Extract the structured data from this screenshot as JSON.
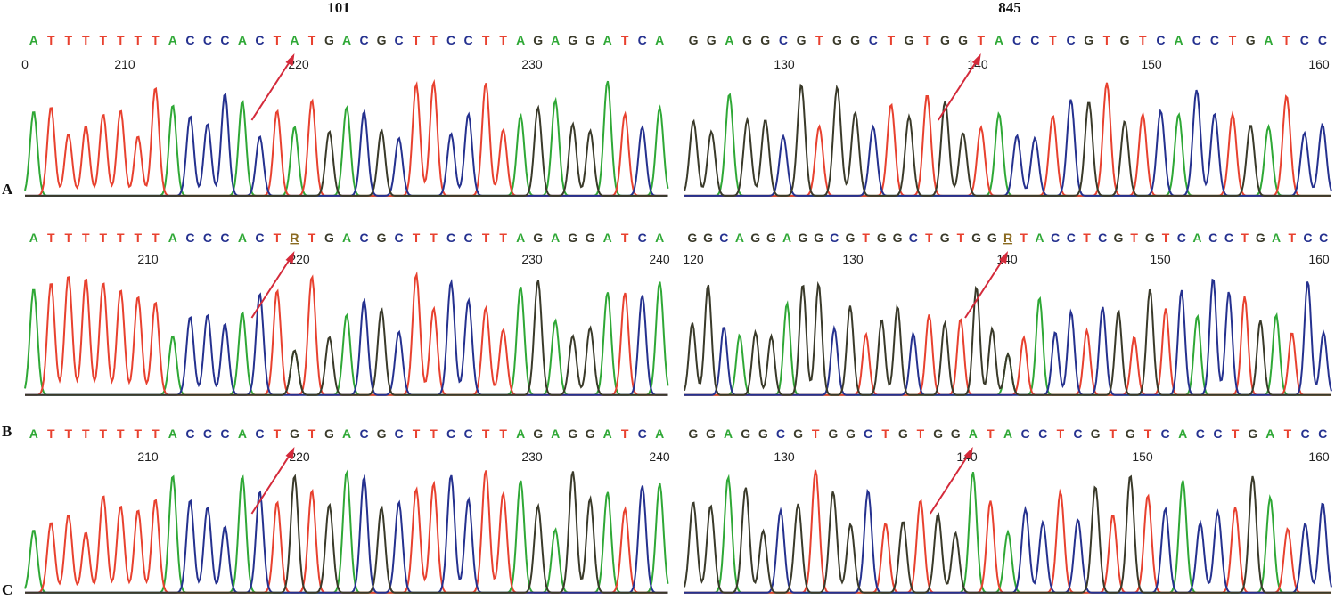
{
  "columns": [
    {
      "title": "101"
    },
    {
      "title": "845"
    }
  ],
  "rows": [
    {
      "label": "A",
      "panels": [
        {
          "sequence": "ATTTTTTTACCCACTATGACGCTTCCTTAGAGGATCA",
          "positions": [
            0,
            210,
            220,
            230
          ]
        },
        {
          "sequence": "GGAGGCGTGGCTGTGGTACCTCGTGTCACCTGATCC",
          "positions": [
            130,
            140,
            150,
            160
          ]
        }
      ]
    },
    {
      "label": "B",
      "panels": [
        {
          "sequence": "ATTTTTTTACCCACTRTGACGCTTCCTTAGAGGATCA",
          "positions": [
            210,
            220,
            230,
            240
          ]
        },
        {
          "sequence": "GGCAGGAGGCGTGGCTGTGGRTACCTCGTGTCACCTGATCC",
          "positions": [
            120,
            130,
            140,
            150,
            160
          ]
        }
      ]
    },
    {
      "label": "C",
      "panels": [
        {
          "sequence": "ATTTTTTTACCCACTGTGACGCTTCCTTAGAGGATCA",
          "positions": [
            210,
            220,
            230,
            240
          ]
        },
        {
          "sequence": "GGAGGCGTGGCTGTGGATACCTCGTGTCACCTGATCC",
          "positions": [
            130,
            140,
            150,
            160
          ]
        }
      ]
    }
  ]
}
